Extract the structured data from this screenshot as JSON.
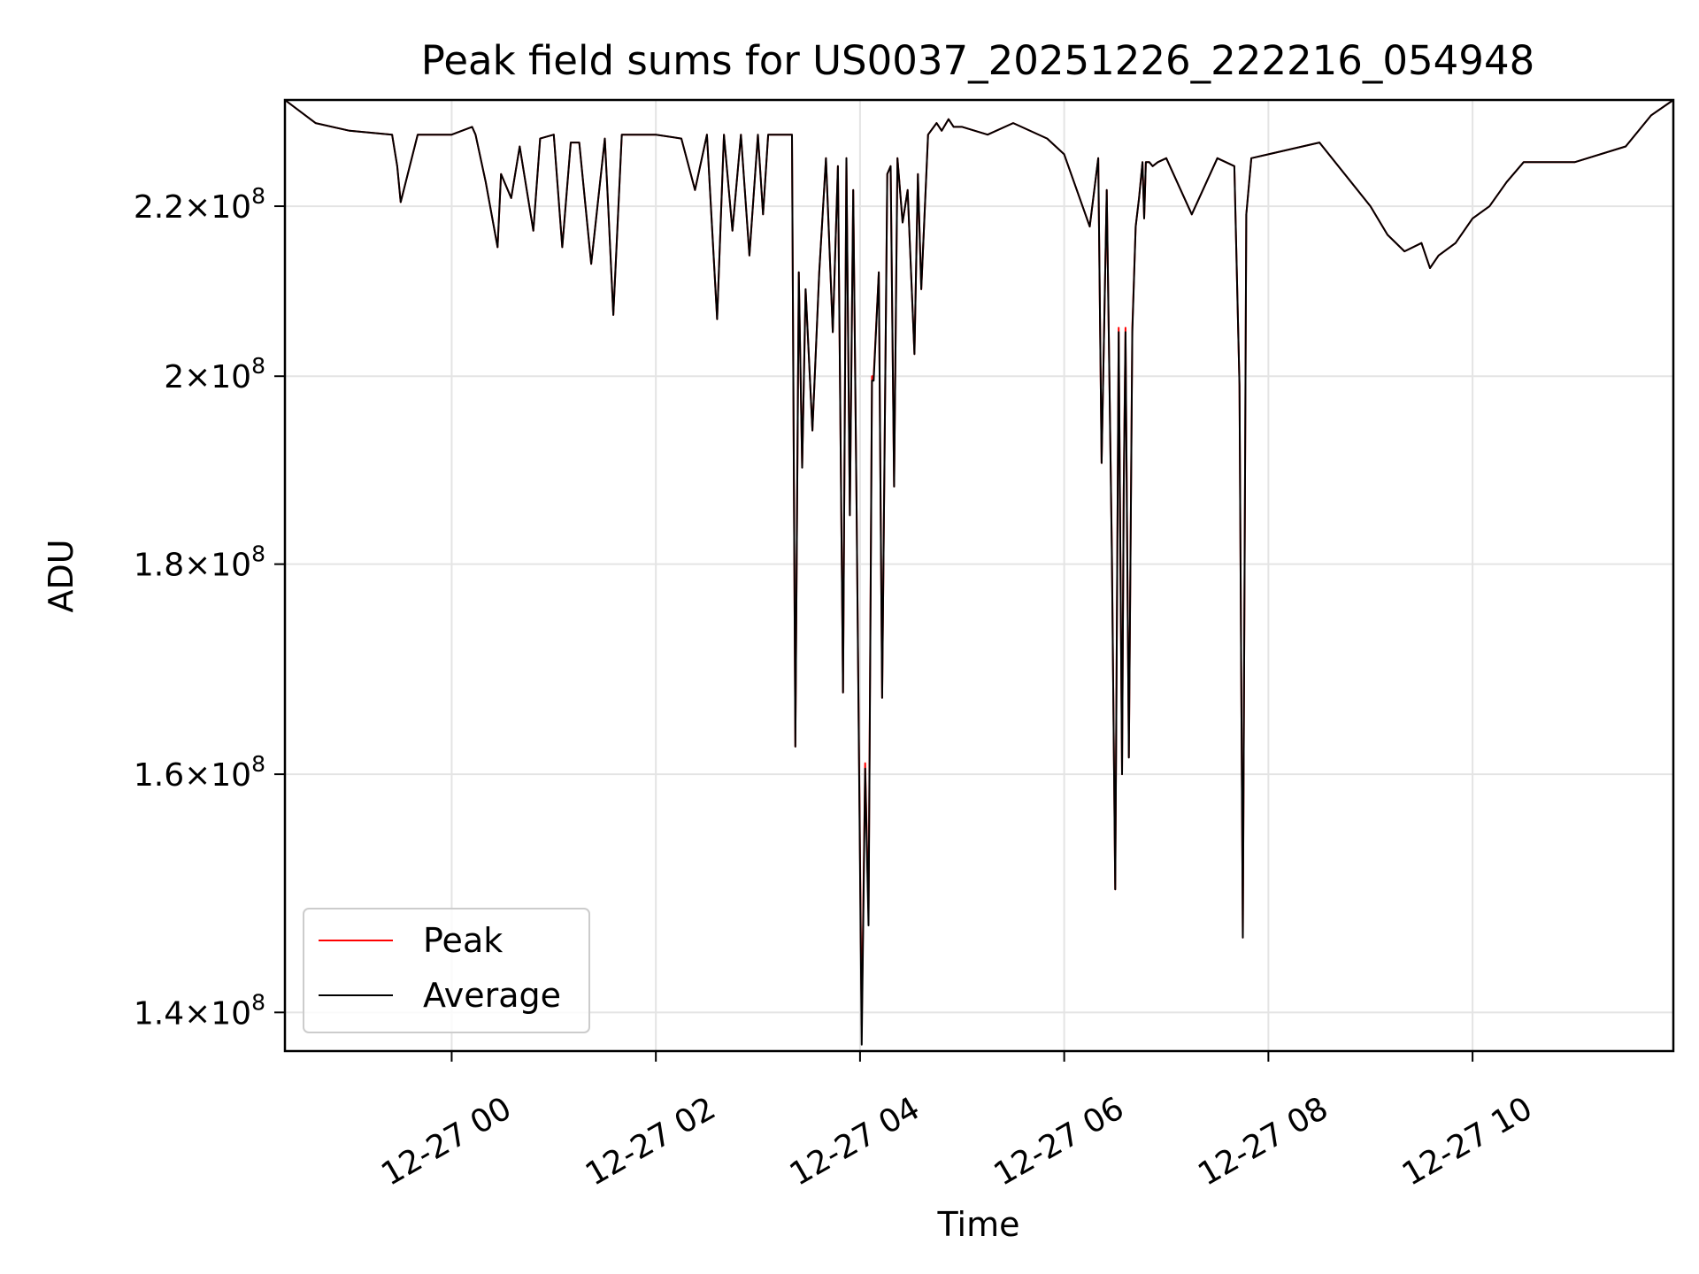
{
  "chart_data": {
    "type": "line",
    "title": "Peak field sums for US0037_20251226_222216_054948",
    "xlabel": "Time",
    "ylabel": "ADU",
    "yscale": "log",
    "ylim": [
      137000000,
      233500000
    ],
    "xlim": [
      "2025-12-26 22:22",
      "2025-12-27 11:58"
    ],
    "grid": true,
    "legend_position": "lower-left",
    "x_ticks": [
      {
        "value": "2025-12-27 00:00",
        "label": "12-27 00"
      },
      {
        "value": "2025-12-27 02:00",
        "label": "12-27 02"
      },
      {
        "value": "2025-12-27 04:00",
        "label": "12-27 04"
      },
      {
        "value": "2025-12-27 06:00",
        "label": "12-27 06"
      },
      {
        "value": "2025-12-27 08:00",
        "label": "12-27 08"
      },
      {
        "value": "2025-12-27 10:00",
        "label": "12-27 10"
      }
    ],
    "y_ticks": [
      {
        "value": 140000000,
        "mantissa": "1.4",
        "base": "10",
        "exponent": "8"
      },
      {
        "value": 160000000,
        "mantissa": "1.6",
        "base": "10",
        "exponent": "8"
      },
      {
        "value": 180000000,
        "mantissa": "1.8",
        "base": "10",
        "exponent": "8"
      },
      {
        "value": 200000000,
        "mantissa": "2",
        "base": "10",
        "exponent": "8"
      },
      {
        "value": 220000000,
        "mantissa": "2.2",
        "base": "10",
        "exponent": "8"
      }
    ],
    "x": [
      "2025-12-26 22:22",
      "2025-12-26 22:40",
      "2025-12-26 23:00",
      "2025-12-26 23:25",
      "2025-12-26 23:28",
      "2025-12-26 23:30",
      "2025-12-26 23:40",
      "2025-12-27 00:00",
      "2025-12-27 00:12",
      "2025-12-27 00:14",
      "2025-12-27 00:20",
      "2025-12-27 00:27",
      "2025-12-27 00:29",
      "2025-12-27 00:35",
      "2025-12-27 00:40",
      "2025-12-27 00:48",
      "2025-12-27 00:52",
      "2025-12-27 01:00",
      "2025-12-27 01:05",
      "2025-12-27 01:10",
      "2025-12-27 01:15",
      "2025-12-27 01:22",
      "2025-12-27 01:30",
      "2025-12-27 01:32",
      "2025-12-27 01:35",
      "2025-12-27 01:40",
      "2025-12-27 02:00",
      "2025-12-27 02:15",
      "2025-12-27 02:23",
      "2025-12-27 02:30",
      "2025-12-27 02:36",
      "2025-12-27 02:40",
      "2025-12-27 02:45",
      "2025-12-27 02:50",
      "2025-12-27 02:55",
      "2025-12-27 03:00",
      "2025-12-27 03:03",
      "2025-12-27 03:06",
      "2025-12-27 03:10",
      "2025-12-27 03:15",
      "2025-12-27 03:20",
      "2025-12-27 03:22",
      "2025-12-27 03:24",
      "2025-12-27 03:26",
      "2025-12-27 03:28",
      "2025-12-27 03:32",
      "2025-12-27 03:36",
      "2025-12-27 03:40",
      "2025-12-27 03:44",
      "2025-12-27 03:47",
      "2025-12-27 03:50",
      "2025-12-27 03:52",
      "2025-12-27 03:54",
      "2025-12-27 03:56",
      "2025-12-27 03:58",
      "2025-12-27 04:01",
      "2025-12-27 04:03",
      "2025-12-27 04:05",
      "2025-12-27 04:07",
      "2025-12-27 04:08",
      "2025-12-27 04:11",
      "2025-12-27 04:13",
      "2025-12-27 04:16",
      "2025-12-27 04:18",
      "2025-12-27 04:20",
      "2025-12-27 04:22",
      "2025-12-27 04:25",
      "2025-12-27 04:28",
      "2025-12-27 04:32",
      "2025-12-27 04:34",
      "2025-12-27 04:36",
      "2025-12-27 04:40",
      "2025-12-27 04:45",
      "2025-12-27 04:48",
      "2025-12-27 04:52",
      "2025-12-27 04:55",
      "2025-12-27 05:00",
      "2025-12-27 05:15",
      "2025-12-27 05:30",
      "2025-12-27 05:50",
      "2025-12-27 06:00",
      "2025-12-27 06:15",
      "2025-12-27 06:20",
      "2025-12-27 06:22",
      "2025-12-27 06:25",
      "2025-12-27 06:28",
      "2025-12-27 06:30",
      "2025-12-27 06:32",
      "2025-12-27 06:34",
      "2025-12-27 06:35",
      "2025-12-27 06:36",
      "2025-12-27 06:38",
      "2025-12-27 06:40",
      "2025-12-27 06:42",
      "2025-12-27 06:44",
      "2025-12-27 06:46",
      "2025-12-27 06:47",
      "2025-12-27 06:48",
      "2025-12-27 06:50",
      "2025-12-27 06:52",
      "2025-12-27 06:55",
      "2025-12-27 07:00",
      "2025-12-27 07:15",
      "2025-12-27 07:30",
      "2025-12-27 07:40",
      "2025-12-27 07:43",
      "2025-12-27 07:45",
      "2025-12-27 07:47",
      "2025-12-27 07:50",
      "2025-12-27 08:00",
      "2025-12-27 08:30",
      "2025-12-27 09:00",
      "2025-12-27 09:10",
      "2025-12-27 09:20",
      "2025-12-27 09:30",
      "2025-12-27 09:35",
      "2025-12-27 09:40",
      "2025-12-27 09:50",
      "2025-12-27 10:00",
      "2025-12-27 10:10",
      "2025-12-27 10:20",
      "2025-12-27 10:30",
      "2025-12-27 11:00",
      "2025-12-27 11:30",
      "2025-12-27 11:45",
      "2025-12-27 11:58"
    ],
    "series": [
      {
        "name": "Peak",
        "color": "#ff0000",
        "values": [
          233500000,
          230500000,
          229500000,
          229000000,
          225000000,
          220500000,
          229000000,
          229000000,
          230000000,
          229000000,
          223000000,
          215000000,
          224000000,
          221000000,
          227500000,
          217000000,
          228500000,
          229000000,
          215000000,
          228000000,
          228000000,
          213000000,
          228500000,
          220000000,
          207000000,
          229000000,
          229000000,
          228500000,
          222000000,
          229000000,
          206500000,
          229000000,
          217000000,
          229000000,
          214000000,
          229000000,
          219000000,
          229000000,
          229000000,
          229000000,
          229000000,
          162500000,
          212000000,
          190000000,
          210000000,
          194000000,
          212000000,
          226000000,
          205000000,
          225000000,
          167500000,
          226000000,
          185000000,
          222000000,
          185000000,
          139000000,
          161000000,
          148000000,
          200000000,
          200000000,
          212000000,
          167000000,
          224000000,
          225000000,
          188000000,
          226000000,
          218000000,
          222000000,
          202500000,
          224000000,
          210000000,
          229000000,
          230500000,
          229500000,
          231000000,
          230000000,
          230000000,
          229000000,
          230500000,
          228500000,
          226500000,
          217500000,
          226000000,
          190500000,
          222000000,
          181500000,
          150000000,
          205500000,
          160000000,
          188000000,
          205500000,
          161500000,
          205500000,
          217500000,
          221000000,
          225500000,
          218500000,
          225500000,
          225500000,
          225000000,
          225500000,
          226000000,
          219000000,
          226000000,
          225000000,
          199000000,
          146000000,
          219000000,
          226000000,
          226500000,
          228000000,
          220000000,
          216500000,
          214500000,
          215500000,
          212500000,
          214000000,
          215500000,
          218500000,
          220000000,
          223000000,
          225500000,
          225500000,
          227500000,
          231500000,
          233500000
        ]
      },
      {
        "name": "Average",
        "color": "#000000",
        "values": [
          233500000,
          230500000,
          229500000,
          229000000,
          225000000,
          220500000,
          229000000,
          229000000,
          230000000,
          229000000,
          223000000,
          215000000,
          224000000,
          221000000,
          227500000,
          217000000,
          228500000,
          229000000,
          215000000,
          228000000,
          228000000,
          213000000,
          228500000,
          220000000,
          207000000,
          229000000,
          229000000,
          228500000,
          222000000,
          229000000,
          206500000,
          229000000,
          217000000,
          229000000,
          214000000,
          229000000,
          219000000,
          229000000,
          229000000,
          229000000,
          229000000,
          162500000,
          212000000,
          190000000,
          210000000,
          194000000,
          212000000,
          226000000,
          205000000,
          225000000,
          167500000,
          226000000,
          185000000,
          222000000,
          185000000,
          137500000,
          160500000,
          147000000,
          199500000,
          199500000,
          212000000,
          167000000,
          224000000,
          225000000,
          188000000,
          226000000,
          218000000,
          222000000,
          202500000,
          224000000,
          210000000,
          229000000,
          230500000,
          229500000,
          231000000,
          230000000,
          230000000,
          229000000,
          230500000,
          228500000,
          226500000,
          217500000,
          226000000,
          190500000,
          222000000,
          181000000,
          150000000,
          205000000,
          160000000,
          187500000,
          205000000,
          161500000,
          205000000,
          217500000,
          221000000,
          225500000,
          218500000,
          225500000,
          225500000,
          225000000,
          225500000,
          226000000,
          219000000,
          226000000,
          225000000,
          199000000,
          146000000,
          219000000,
          226000000,
          226500000,
          228000000,
          220000000,
          216500000,
          214500000,
          215500000,
          212500000,
          214000000,
          215500000,
          218500000,
          220000000,
          223000000,
          225500000,
          225500000,
          227500000,
          231500000,
          233500000
        ]
      }
    ]
  }
}
